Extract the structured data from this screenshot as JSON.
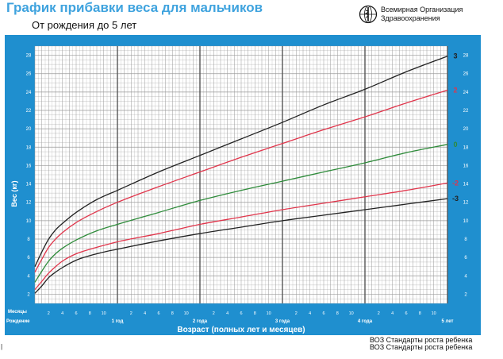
{
  "header": {
    "title": "График прибавки веса для мальчиков",
    "subtitle": "От рождения до 5 лет"
  },
  "logo": {
    "icon": "who-emblem-icon",
    "line1": "Всемирная Организация",
    "line2": "Здравоохранения"
  },
  "footer": {
    "line1": "ВОЗ Стандарты роста ребенка",
    "line2": "ВОЗ Стандарты роста ребенка"
  },
  "corner_mark": "|",
  "colors": {
    "panel": "#1f8fcf",
    "grid": "#9a9a9a",
    "grid_major": "#555555",
    "sd3": "#222222",
    "sd2": "#e0354b",
    "sd0": "#2e8b3a",
    "title": "#3fa3de"
  },
  "chart_data": {
    "type": "line",
    "ylabel": "Вес (кг)",
    "xlabel": "Возраст (полных лет и месяцев)",
    "x_unit_label": "Месяцы",
    "birth_label": "Рождение",
    "xlim": [
      0,
      60
    ],
    "ylim": [
      1,
      29
    ],
    "y_ticks": [
      2,
      4,
      6,
      8,
      10,
      12,
      14,
      16,
      18,
      20,
      22,
      24,
      26,
      28
    ],
    "x_year_ticks": [
      {
        "month": 12,
        "label": "1 год"
      },
      {
        "month": 24,
        "label": "2 года"
      },
      {
        "month": 36,
        "label": "3 года"
      },
      {
        "month": 48,
        "label": "4 года"
      },
      {
        "month": 60,
        "label": "5 лет"
      }
    ],
    "x_month_ticks": [
      {
        "month": 2,
        "label": "2"
      },
      {
        "month": 4,
        "label": "4"
      },
      {
        "month": 6,
        "label": "6"
      },
      {
        "month": 8,
        "label": "8"
      },
      {
        "month": 10,
        "label": "10"
      },
      {
        "month": 14,
        "label": "2"
      },
      {
        "month": 16,
        "label": "4"
      },
      {
        "month": 18,
        "label": "6"
      },
      {
        "month": 20,
        "label": "8"
      },
      {
        "month": 22,
        "label": "10"
      },
      {
        "month": 26,
        "label": "2"
      },
      {
        "month": 28,
        "label": "4"
      },
      {
        "month": 30,
        "label": "6"
      },
      {
        "month": 32,
        "label": "8"
      },
      {
        "month": 34,
        "label": "10"
      },
      {
        "month": 38,
        "label": "2"
      },
      {
        "month": 40,
        "label": "4"
      },
      {
        "month": 42,
        "label": "6"
      },
      {
        "month": 44,
        "label": "8"
      },
      {
        "month": 46,
        "label": "10"
      },
      {
        "month": 50,
        "label": "2"
      },
      {
        "month": 52,
        "label": "4"
      },
      {
        "month": 54,
        "label": "6"
      },
      {
        "month": 56,
        "label": "8"
      },
      {
        "month": 58,
        "label": "10"
      }
    ],
    "x": [
      0,
      1,
      2,
      3,
      4,
      6,
      9,
      12,
      18,
      24,
      30,
      36,
      42,
      48,
      54,
      60
    ],
    "series": [
      {
        "name": "3",
        "color": "#222222",
        "values": [
          5.0,
          6.6,
          8.0,
          9.0,
          9.7,
          10.9,
          12.3,
          13.3,
          15.3,
          17.1,
          18.9,
          20.7,
          22.6,
          24.3,
          26.2,
          27.9
        ]
      },
      {
        "name": "2",
        "color": "#e0354b",
        "values": [
          4.4,
          5.8,
          7.1,
          8.0,
          8.7,
          9.8,
          11.0,
          12.0,
          13.7,
          15.3,
          16.9,
          18.4,
          19.9,
          21.3,
          22.8,
          24.2
        ]
      },
      {
        "name": "0",
        "color": "#2e8b3a",
        "values": [
          3.3,
          4.5,
          5.6,
          6.4,
          7.0,
          7.9,
          8.9,
          9.6,
          10.9,
          12.2,
          13.3,
          14.3,
          15.3,
          16.3,
          17.4,
          18.3
        ]
      },
      {
        "name": "-2",
        "color": "#e0354b",
        "values": [
          2.5,
          3.4,
          4.3,
          5.0,
          5.6,
          6.4,
          7.1,
          7.7,
          8.6,
          9.6,
          10.4,
          11.2,
          11.9,
          12.6,
          13.3,
          14.1
        ]
      },
      {
        "name": "-3",
        "color": "#222222",
        "values": [
          2.1,
          2.9,
          3.8,
          4.4,
          4.9,
          5.7,
          6.4,
          6.9,
          7.8,
          8.6,
          9.3,
          10.0,
          10.6,
          11.2,
          11.8,
          12.4
        ]
      }
    ]
  }
}
